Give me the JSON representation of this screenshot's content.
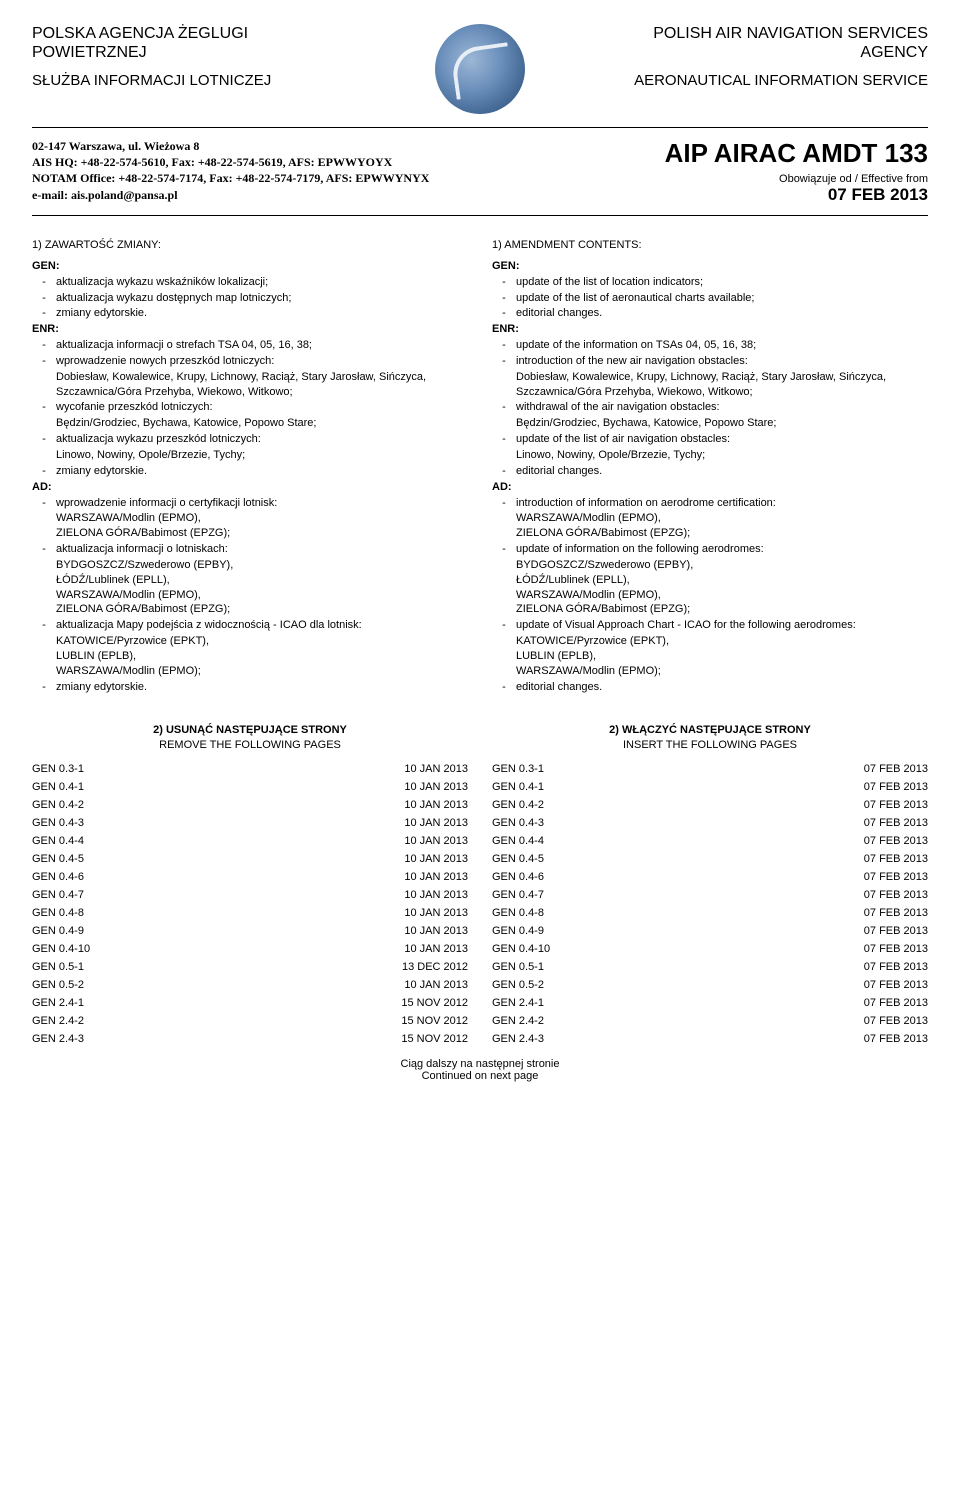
{
  "header": {
    "left_main": "POLSKA AGENCJA ŻEGLUGI POWIETRZNEJ",
    "left_sub": "SŁUŻBA INFORMACJI LOTNICZEJ",
    "right_main": "POLISH AIR NAVIGATION SERVICES AGENCY",
    "right_sub": "AERONAUTICAL INFORMATION SERVICE"
  },
  "address": {
    "line1": "02-147 Warszawa, ul. Wieżowa 8",
    "line2": "AIS HQ: +48-22-574-5610, Fax: +48-22-574-5619, AFS: EPWWYOYX",
    "line3": "NOTAM Office: +48-22-574-7174, Fax: +48-22-574-7179, AFS: EPWWYNYX",
    "line4": "e-mail: ais.poland@pansa.pl"
  },
  "doc": {
    "title": "AIP AIRAC AMDT 133",
    "eff_label": "Obowiązuje od / Effective from",
    "eff_date": "07 FEB 2013"
  },
  "section1": {
    "pl": "1) ZAWARTOŚĆ ZMIANY:",
    "en": "1) AMENDMENT CONTENTS:"
  },
  "labels": {
    "gen": "GEN:",
    "enr": "ENR:",
    "ad": "AD:"
  },
  "pl": {
    "gen": [
      "aktualizacja wykazu wskaźników lokalizacji;",
      "aktualizacja wykazu dostępnych map lotniczych;",
      "zmiany edytorskie."
    ],
    "enr": [
      {
        "t": "aktualizacja informacji o strefach TSA 04, 05, 16, 38;"
      },
      {
        "t": "wprowadzenie nowych przeszkód lotniczych:",
        "s": "Dobiesław, Kowalewice, Krupy, Lichnowy, Raciąż, Stary Jarosław, Sińczyca, Szczawnica/Góra Przehyba, Wiekowo, Witkowo;"
      },
      {
        "t": "wycofanie przeszkód lotniczych:",
        "s": "Będzin/Grodziec, Bychawa, Katowice, Popowo Stare;"
      },
      {
        "t": "aktualizacja wykazu przeszkód lotniczych:",
        "s": "Linowo, Nowiny, Opole/Brzezie, Tychy;"
      },
      {
        "t": "zmiany edytorskie."
      }
    ],
    "ad": [
      {
        "t": "wprowadzenie informacji o certyfikacji lotnisk:",
        "s": "WARSZAWA/Modlin (EPMO),\nZIELONA GÓRA/Babimost (EPZG);"
      },
      {
        "t": "aktualizacja informacji o lotniskach:",
        "s": "BYDGOSZCZ/Szwederowo (EPBY),\nŁÓDŹ/Lublinek (EPLL),\nWARSZAWA/Modlin (EPMO),\nZIELONA GÓRA/Babimost (EPZG);"
      },
      {
        "t": "aktualizacja Mapy podejścia z widocznością - ICAO dla lotnisk:",
        "s": "\nKATOWICE/Pyrzowice (EPKT),\nLUBLIN (EPLB),\nWARSZAWA/Modlin (EPMO);"
      },
      {
        "t": "zmiany edytorskie."
      }
    ]
  },
  "en": {
    "gen": [
      "update of the list of location indicators;",
      "update of the list of aeronautical charts available;",
      "editorial changes."
    ],
    "enr": [
      {
        "t": "update of the information on TSAs 04, 05, 16, 38;"
      },
      {
        "t": "introduction of the new air navigation obstacles:",
        "s": "Dobiesław, Kowalewice, Krupy, Lichnowy, Raciąż, Stary Jarosław, Sińczyca, Szczawnica/Góra Przehyba, Wiekowo, Witkowo;"
      },
      {
        "t": "withdrawal of the air navigation obstacles:",
        "s": "Będzin/Grodziec, Bychawa, Katowice, Popowo Stare;"
      },
      {
        "t": "update of the list of air navigation obstacles:",
        "s": "Linowo, Nowiny, Opole/Brzezie, Tychy;"
      },
      {
        "t": "editorial changes."
      }
    ],
    "ad": [
      {
        "t": "introduction of information on aerodrome certification:",
        "s": "WARSZAWA/Modlin (EPMO),\nZIELONA GÓRA/Babimost (EPZG);"
      },
      {
        "t": "update of information on the following aerodromes:",
        "s": "BYDGOSZCZ/Szwederowo (EPBY),\nŁÓDŹ/Lublinek (EPLL),\nWARSZAWA/Modlin (EPMO),\nZIELONA GÓRA/Babimost (EPZG);"
      },
      {
        "t": "update of Visual Approach Chart - ICAO for the following aerodromes:",
        "s": "KATOWICE/Pyrzowice (EPKT),\nLUBLIN (EPLB),\nWARSZAWA/Modlin (EPMO);"
      },
      {
        "t": "editorial changes."
      }
    ]
  },
  "tables": {
    "remove_head1": "2) USUNĄĆ NASTĘPUJĄCE STRONY",
    "remove_head2": "REMOVE THE FOLLOWING PAGES",
    "insert_head1": "2) WŁĄCZYĆ NASTĘPUJĄCE STRONY",
    "insert_head2": "INSERT THE FOLLOWING PAGES",
    "remove": [
      [
        "GEN 0.3-1",
        "10 JAN 2013"
      ],
      [
        "GEN 0.4-1",
        "10 JAN 2013"
      ],
      [
        "GEN 0.4-2",
        "10 JAN 2013"
      ],
      [
        "GEN 0.4-3",
        "10 JAN 2013"
      ],
      [
        "GEN 0.4-4",
        "10 JAN 2013"
      ],
      [
        "GEN 0.4-5",
        "10 JAN 2013"
      ],
      [
        "GEN 0.4-6",
        "10 JAN 2013"
      ],
      [
        "GEN 0.4-7",
        "10 JAN 2013"
      ],
      [
        "GEN 0.4-8",
        "10 JAN 2013"
      ],
      [
        "GEN 0.4-9",
        "10 JAN 2013"
      ],
      [
        "GEN 0.4-10",
        "10 JAN 2013"
      ],
      [
        "GEN 0.5-1",
        "13 DEC 2012"
      ],
      [
        "GEN 0.5-2",
        "10 JAN 2013"
      ],
      [
        "GEN 2.4-1",
        "15 NOV 2012"
      ],
      [
        "GEN 2.4-2",
        "15 NOV 2012"
      ],
      [
        "GEN 2.4-3",
        "15 NOV 2012"
      ]
    ],
    "insert": [
      [
        "GEN 0.3-1",
        "07 FEB 2013"
      ],
      [
        "GEN 0.4-1",
        "07 FEB 2013"
      ],
      [
        "GEN 0.4-2",
        "07 FEB 2013"
      ],
      [
        "GEN 0.4-3",
        "07 FEB 2013"
      ],
      [
        "GEN 0.4-4",
        "07 FEB 2013"
      ],
      [
        "GEN 0.4-5",
        "07 FEB 2013"
      ],
      [
        "GEN 0.4-6",
        "07 FEB 2013"
      ],
      [
        "GEN 0.4-7",
        "07 FEB 2013"
      ],
      [
        "GEN 0.4-8",
        "07 FEB 2013"
      ],
      [
        "GEN 0.4-9",
        "07 FEB 2013"
      ],
      [
        "GEN 0.4-10",
        "07 FEB 2013"
      ],
      [
        "GEN 0.5-1",
        "07 FEB 2013"
      ],
      [
        "GEN 0.5-2",
        "07 FEB 2013"
      ],
      [
        "GEN 2.4-1",
        "07 FEB 2013"
      ],
      [
        "GEN 2.4-2",
        "07 FEB 2013"
      ],
      [
        "GEN 2.4-3",
        "07 FEB 2013"
      ]
    ]
  },
  "footer": {
    "pl": "Ciąg dalszy na następnej stronie",
    "en": "Continued on next page"
  }
}
